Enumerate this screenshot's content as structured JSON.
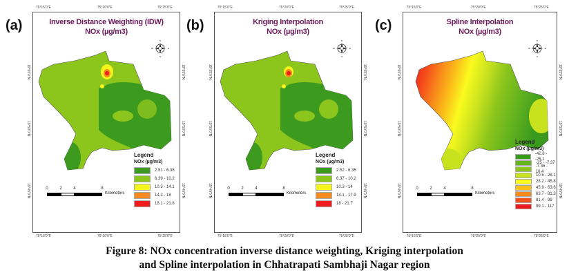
{
  "panels": [
    {
      "label": "(a)",
      "title": "Inverse Distance Weighting (IDW)",
      "subtitle": "NOx (µg/m3)",
      "legend": {
        "heading": "Legend",
        "subheading": "NOx (µg/m3)",
        "items": [
          {
            "range": "2.51 - 6.38",
            "color": "#3c9a1e"
          },
          {
            "range": "6.39 - 10.2",
            "color": "#8cc51c"
          },
          {
            "range": "10.3 - 14.1",
            "color": "#f5f51e"
          },
          {
            "range": "14.2 - 18",
            "color": "#f58a1e"
          },
          {
            "range": "18.1 - 21.8",
            "color": "#ee1c1c"
          }
        ]
      }
    },
    {
      "label": "(b)",
      "title": "Kriging Interpolation",
      "subtitle": "NOx (µg/m3)",
      "legend": {
        "heading": "Legend",
        "subheading": "NOx (µg/m3)",
        "items": [
          {
            "range": "2.52 - 6.36",
            "color": "#3c9a1e"
          },
          {
            "range": "6.37 - 10.2",
            "color": "#8cc51c"
          },
          {
            "range": "10.3 - 14",
            "color": "#f5f51e"
          },
          {
            "range": "14.1 - 17.9",
            "color": "#f58a1e"
          },
          {
            "range": "18 - 21.7",
            "color": "#ee1c1c"
          }
        ]
      }
    },
    {
      "label": "(c)",
      "title": "Spline Interpolation",
      "subtitle": "NOx (µg/m3)",
      "legend": {
        "heading": "Legend",
        "subheading": "NOx (µg/m3)",
        "items": [
          {
            "range": "-42.8 - -25.1",
            "color": "#3a9a1e"
          },
          {
            "range": "-25 - -7.37",
            "color": "#66b41e"
          },
          {
            "range": "-7.36 - 10.4",
            "color": "#8cc51c"
          },
          {
            "range": "10.5 - 28.1",
            "color": "#c8e21e"
          },
          {
            "range": "28.2 - 45.8",
            "color": "#fafa1e"
          },
          {
            "range": "45.9 - 63.6",
            "color": "#fbbf1a"
          },
          {
            "range": "63.7 - 81.3",
            "color": "#f88a1a"
          },
          {
            "range": "81.4 - 99",
            "color": "#f5501a"
          },
          {
            "range": "99.1 - 117",
            "color": "#ee1c1c"
          }
        ]
      }
    }
  ],
  "ticks": {
    "lon": [
      "75°15'0\"E",
      "75°20'0\"E",
      "75°25'0\"E"
    ],
    "lat": [
      "19°55'0\"N",
      "19°50'0\"N",
      "19°45'0\"N"
    ]
  },
  "scale": {
    "labels": [
      "0",
      "2",
      "4",
      "8"
    ],
    "unit": "Kilometers"
  },
  "compass": {
    "n": "N",
    "s": "S",
    "e": "E",
    "w": "W"
  },
  "caption": {
    "line1": "Figure 8: NOx concentration inverse distance weighting, Kriging interpolation",
    "line2": "and Spline interpolation in Chhatrapati Sambhaji Nagar region"
  }
}
